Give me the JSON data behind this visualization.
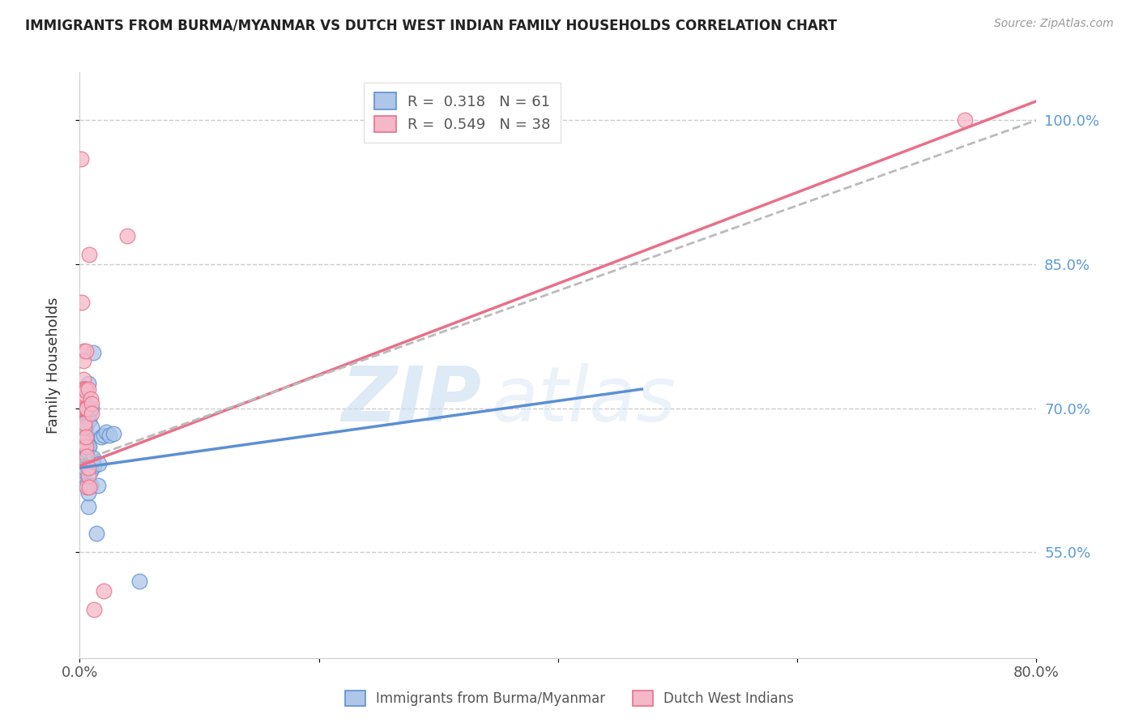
{
  "title": "IMMIGRANTS FROM BURMA/MYANMAR VS DUTCH WEST INDIAN FAMILY HOUSEHOLDS CORRELATION CHART",
  "source": "Source: ZipAtlas.com",
  "ylabel": "Family Households",
  "x_min": 0.0,
  "x_max": 0.8,
  "y_min": 0.44,
  "y_max": 1.05,
  "y_ticks": [
    0.55,
    0.7,
    0.85,
    1.0
  ],
  "y_tick_labels": [
    "55.0%",
    "70.0%",
    "85.0%",
    "100.0%"
  ],
  "x_ticks": [
    0.0,
    0.2,
    0.4,
    0.6,
    0.8
  ],
  "x_tick_labels": [
    "0.0%",
    "",
    "",
    "",
    "80.0%"
  ],
  "blue_R": 0.318,
  "blue_N": 61,
  "pink_R": 0.549,
  "pink_N": 38,
  "legend1_label": "Immigrants from Burma/Myanmar",
  "legend2_label": "Dutch West Indians",
  "watermark_zip": "ZIP",
  "watermark_atlas": "atlas",
  "blue_color": "#aec6e8",
  "pink_color": "#f5b8c8",
  "blue_line_color": "#5b8fd4",
  "pink_line_color": "#e8708a",
  "dashed_line_color": "#bbbbbb",
  "blue_line_x": [
    0.0,
    0.47
  ],
  "blue_line_y": [
    0.638,
    0.72
  ],
  "pink_line_x": [
    0.0,
    0.8
  ],
  "pink_line_y": [
    0.64,
    1.02
  ],
  "dash_line_x": [
    0.0,
    0.8
  ],
  "dash_line_y": [
    0.645,
    1.0
  ],
  "blue_scatter": [
    [
      0.001,
      0.645
    ],
    [
      0.001,
      0.655
    ],
    [
      0.001,
      0.66
    ],
    [
      0.001,
      0.635
    ],
    [
      0.002,
      0.65
    ],
    [
      0.002,
      0.67
    ],
    [
      0.002,
      0.64
    ],
    [
      0.002,
      0.665
    ],
    [
      0.003,
      0.648
    ],
    [
      0.003,
      0.638
    ],
    [
      0.003,
      0.66
    ],
    [
      0.003,
      0.642
    ],
    [
      0.003,
      0.652
    ],
    [
      0.003,
      0.67
    ],
    [
      0.003,
      0.628
    ],
    [
      0.003,
      0.66
    ],
    [
      0.004,
      0.656
    ],
    [
      0.004,
      0.645
    ],
    [
      0.004,
      0.635
    ],
    [
      0.004,
      0.67
    ],
    [
      0.004,
      0.648
    ],
    [
      0.004,
      0.638
    ],
    [
      0.004,
      0.662
    ],
    [
      0.004,
      0.68
    ],
    [
      0.005,
      0.652
    ],
    [
      0.005,
      0.665
    ],
    [
      0.005,
      0.67
    ],
    [
      0.005,
      0.68
    ],
    [
      0.005,
      0.658
    ],
    [
      0.005,
      0.695
    ],
    [
      0.005,
      0.66
    ],
    [
      0.005,
      0.62
    ],
    [
      0.006,
      0.69
    ],
    [
      0.006,
      0.67
    ],
    [
      0.006,
      0.656
    ],
    [
      0.006,
      0.672
    ],
    [
      0.006,
      0.668
    ],
    [
      0.007,
      0.598
    ],
    [
      0.007,
      0.612
    ],
    [
      0.007,
      0.726
    ],
    [
      0.007,
      0.66
    ],
    [
      0.008,
      0.7
    ],
    [
      0.008,
      0.687
    ],
    [
      0.008,
      0.695
    ],
    [
      0.008,
      0.66
    ],
    [
      0.009,
      0.62
    ],
    [
      0.009,
      0.635
    ],
    [
      0.01,
      0.68
    ],
    [
      0.01,
      0.7
    ],
    [
      0.011,
      0.758
    ],
    [
      0.011,
      0.648
    ],
    [
      0.012,
      0.64
    ],
    [
      0.014,
      0.57
    ],
    [
      0.015,
      0.62
    ],
    [
      0.016,
      0.642
    ],
    [
      0.018,
      0.67
    ],
    [
      0.02,
      0.672
    ],
    [
      0.022,
      0.675
    ],
    [
      0.025,
      0.672
    ],
    [
      0.028,
      0.674
    ],
    [
      0.05,
      0.52
    ]
  ],
  "pink_scatter": [
    [
      0.001,
      0.96
    ],
    [
      0.002,
      0.7
    ],
    [
      0.002,
      0.72
    ],
    [
      0.002,
      0.81
    ],
    [
      0.003,
      0.665
    ],
    [
      0.003,
      0.76
    ],
    [
      0.003,
      0.75
    ],
    [
      0.003,
      0.73
    ],
    [
      0.003,
      0.72
    ],
    [
      0.003,
      0.71
    ],
    [
      0.003,
      0.665
    ],
    [
      0.004,
      0.72
    ],
    [
      0.004,
      0.72
    ],
    [
      0.004,
      0.715
    ],
    [
      0.004,
      0.7
    ],
    [
      0.004,
      0.68
    ],
    [
      0.004,
      0.685
    ],
    [
      0.005,
      0.76
    ],
    [
      0.005,
      0.72
    ],
    [
      0.005,
      0.718
    ],
    [
      0.005,
      0.66
    ],
    [
      0.005,
      0.7
    ],
    [
      0.005,
      0.67
    ],
    [
      0.006,
      0.7
    ],
    [
      0.006,
      0.618
    ],
    [
      0.006,
      0.65
    ],
    [
      0.007,
      0.72
    ],
    [
      0.007,
      0.63
    ],
    [
      0.007,
      0.638
    ],
    [
      0.008,
      0.86
    ],
    [
      0.008,
      0.618
    ],
    [
      0.009,
      0.71
    ],
    [
      0.01,
      0.705
    ],
    [
      0.01,
      0.695
    ],
    [
      0.012,
      0.49
    ],
    [
      0.02,
      0.51
    ],
    [
      0.04,
      0.88
    ],
    [
      0.74,
      1.0
    ]
  ]
}
